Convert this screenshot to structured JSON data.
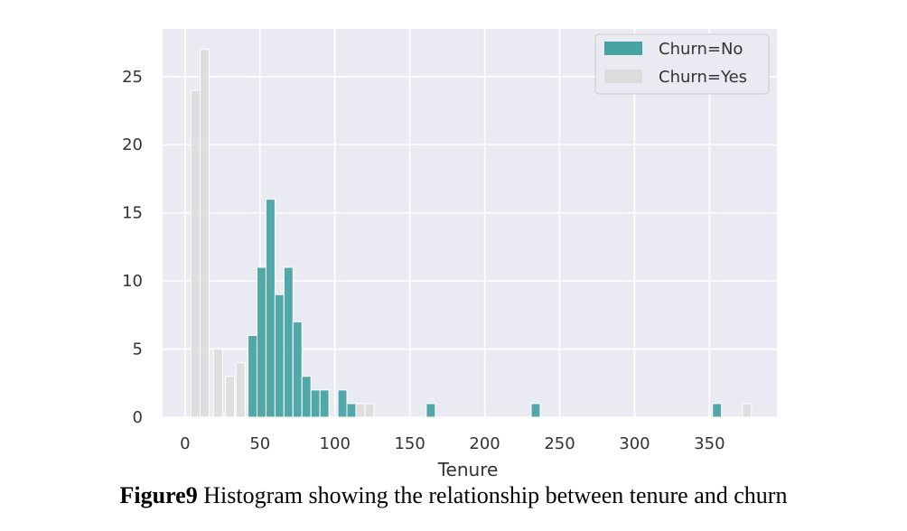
{
  "chart_data": {
    "type": "bar",
    "title": "",
    "xlabel": "Tenure",
    "ylabel": "",
    "xlim": [
      -15,
      395
    ],
    "ylim": [
      0,
      28.5
    ],
    "bin_width": 6,
    "xticks": [
      0,
      50,
      100,
      150,
      200,
      250,
      300,
      350
    ],
    "yticks": [
      0,
      5,
      10,
      15,
      20,
      25
    ],
    "grid": true,
    "legend_position": "top-right",
    "series": [
      {
        "name": "Churn=No",
        "color": "#4aa3a3",
        "bins": [
          {
            "x": 42,
            "count": 6
          },
          {
            "x": 48,
            "count": 11
          },
          {
            "x": 54,
            "count": 16
          },
          {
            "x": 60,
            "count": 9
          },
          {
            "x": 66,
            "count": 11
          },
          {
            "x": 72,
            "count": 7
          },
          {
            "x": 78,
            "count": 3
          },
          {
            "x": 84,
            "count": 2
          },
          {
            "x": 90,
            "count": 2
          },
          {
            "x": 102,
            "count": 2
          },
          {
            "x": 108,
            "count": 1
          },
          {
            "x": 161,
            "count": 1
          },
          {
            "x": 231,
            "count": 1
          },
          {
            "x": 352,
            "count": 1
          }
        ]
      },
      {
        "name": "Churn=Yes",
        "color": "#dcdcdc",
        "bins": [
          {
            "x": 4,
            "count": 24
          },
          {
            "x": 10,
            "count": 27
          },
          {
            "x": 19,
            "count": 5
          },
          {
            "x": 27,
            "count": 3
          },
          {
            "x": 34,
            "count": 4
          },
          {
            "x": 44,
            "count": 3
          },
          {
            "x": 50,
            "count": 1
          },
          {
            "x": 56,
            "count": 1
          },
          {
            "x": 81,
            "count": 1
          },
          {
            "x": 87,
            "count": 1
          },
          {
            "x": 114,
            "count": 1
          },
          {
            "x": 120,
            "count": 1
          },
          {
            "x": 372,
            "count": 1
          }
        ]
      }
    ]
  },
  "figure": {
    "caption_label": "Figure9",
    "caption_text": " Histogram showing the relationship between tenure and churn"
  }
}
